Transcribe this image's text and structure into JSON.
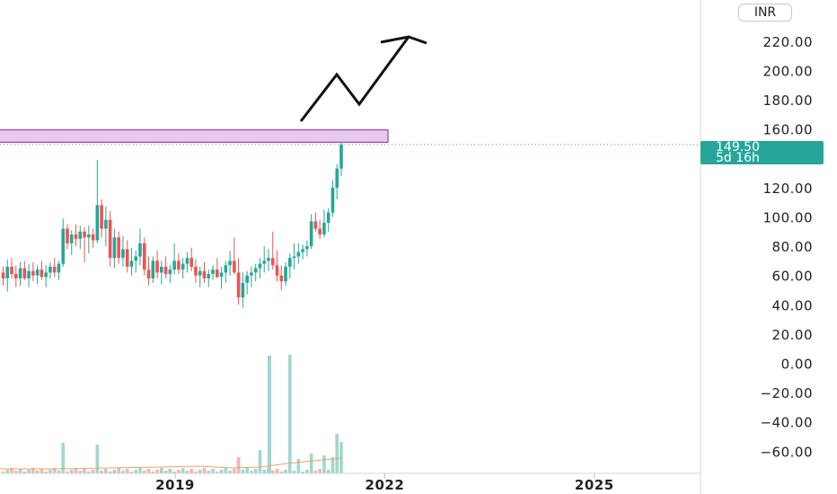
{
  "currency_label": "INR",
  "price_tag": {
    "price": "149.50",
    "countdown": "5d 16h"
  },
  "y_axis_labels": [
    "220.00",
    "200.00",
    "180.00",
    "160.00",
    "120.00",
    "100.00",
    "80.00",
    "60.00",
    "40.00",
    "20.00",
    "0.00",
    "−20.00",
    "−40.00",
    "−60.00"
  ],
  "x_axis_labels": [
    "2019",
    "2022",
    "2025"
  ],
  "colors": {
    "up": "#26a69a",
    "down": "#ef5350",
    "volume_up": "#9fd7d0",
    "volume_down": "#f7b3b1",
    "zone_fill": "#e8c9ee",
    "zone_border": "#a040b0",
    "price_line": "#26a69a"
  },
  "chart_data": {
    "type": "candlestick",
    "currency": "INR",
    "ylim": [
      -75,
      240
    ],
    "y_ticks": [
      220,
      200,
      180,
      160,
      120,
      100,
      80,
      60,
      40,
      20,
      0,
      -20,
      -40,
      -60
    ],
    "x_ticks": [
      "2019",
      "2022",
      "2025"
    ],
    "last_price": 149.5,
    "resistance_zone": [
      151,
      159.5
    ],
    "projection_path": [
      [
        2021.4,
        158
      ],
      [
        2021.85,
        198
      ],
      [
        2022.15,
        177
      ],
      [
        2022.65,
        226
      ],
      [
        2023.0,
        220
      ]
    ],
    "candles_ohlc": [
      [
        62,
        66,
        53,
        58
      ],
      [
        58,
        71,
        49,
        66
      ],
      [
        66,
        72,
        58,
        61
      ],
      [
        61,
        67,
        52,
        58
      ],
      [
        58,
        69,
        53,
        65
      ],
      [
        65,
        70,
        57,
        58
      ],
      [
        58,
        68,
        52,
        63
      ],
      [
        63,
        69,
        56,
        60
      ],
      [
        60,
        67,
        54,
        64
      ],
      [
        64,
        70,
        57,
        59
      ],
      [
        59,
        67,
        52,
        62
      ],
      [
        62,
        69,
        58,
        66
      ],
      [
        66,
        72,
        59,
        62
      ],
      [
        62,
        70,
        57,
        68
      ],
      [
        68,
        99,
        66,
        92
      ],
      [
        92,
        95,
        78,
        82
      ],
      [
        82,
        91,
        74,
        88
      ],
      [
        88,
        95,
        80,
        85
      ],
      [
        85,
        94,
        78,
        90
      ],
      [
        90,
        93,
        69,
        86
      ],
      [
        86,
        94,
        75,
        88
      ],
      [
        88,
        92,
        79,
        84
      ],
      [
        84,
        139,
        82,
        108
      ],
      [
        108,
        112,
        86,
        92
      ],
      [
        92,
        107,
        80,
        98
      ],
      [
        98,
        104,
        66,
        72
      ],
      [
        72,
        92,
        65,
        86
      ],
      [
        86,
        90,
        68,
        72
      ],
      [
        72,
        87,
        66,
        78
      ],
      [
        78,
        84,
        62,
        66
      ],
      [
        66,
        79,
        60,
        70
      ],
      [
        70,
        77,
        62,
        73
      ],
      [
        73,
        92,
        67,
        82
      ],
      [
        82,
        86,
        60,
        64
      ],
      [
        64,
        73,
        53,
        58
      ],
      [
        58,
        73,
        55,
        70
      ],
      [
        70,
        77,
        58,
        62
      ],
      [
        62,
        70,
        54,
        66
      ],
      [
        66,
        73,
        58,
        61
      ],
      [
        61,
        67,
        55,
        64
      ],
      [
        64,
        82,
        61,
        70
      ],
      [
        70,
        75,
        61,
        64
      ],
      [
        64,
        72,
        58,
        68
      ],
      [
        68,
        76,
        62,
        72
      ],
      [
        72,
        79,
        63,
        66
      ],
      [
        66,
        71,
        55,
        60
      ],
      [
        60,
        66,
        52,
        63
      ],
      [
        63,
        69,
        55,
        58
      ],
      [
        58,
        64,
        52,
        61
      ],
      [
        61,
        67,
        57,
        64
      ],
      [
        64,
        72,
        58,
        59
      ],
      [
        59,
        66,
        51,
        62
      ],
      [
        62,
        70,
        55,
        67
      ],
      [
        67,
        77,
        60,
        70
      ],
      [
        70,
        86,
        61,
        62
      ],
      [
        62,
        72,
        40,
        45
      ],
      [
        45,
        62,
        38,
        55
      ],
      [
        55,
        63,
        47,
        60
      ],
      [
        60,
        66,
        52,
        62
      ],
      [
        62,
        68,
        56,
        65
      ],
      [
        65,
        72,
        58,
        68
      ],
      [
        68,
        80,
        62,
        70
      ],
      [
        70,
        78,
        63,
        72
      ],
      [
        72,
        90,
        64,
        67
      ],
      [
        67,
        77,
        56,
        60
      ],
      [
        60,
        67,
        50,
        56
      ],
      [
        56,
        69,
        53,
        66
      ],
      [
        66,
        75,
        58,
        72
      ],
      [
        72,
        82,
        64,
        73
      ],
      [
        73,
        82,
        68,
        76
      ],
      [
        76,
        81,
        71,
        78
      ],
      [
        78,
        84,
        73,
        80
      ],
      [
        80,
        102,
        78,
        97
      ],
      [
        97,
        103,
        90,
        92
      ],
      [
        92,
        98,
        85,
        88
      ],
      [
        88,
        105,
        86,
        96
      ],
      [
        96,
        106,
        90,
        103
      ],
      [
        103,
        125,
        100,
        120
      ],
      [
        120,
        136,
        112,
        133
      ],
      [
        133,
        151,
        128,
        149.5
      ]
    ]
  }
}
